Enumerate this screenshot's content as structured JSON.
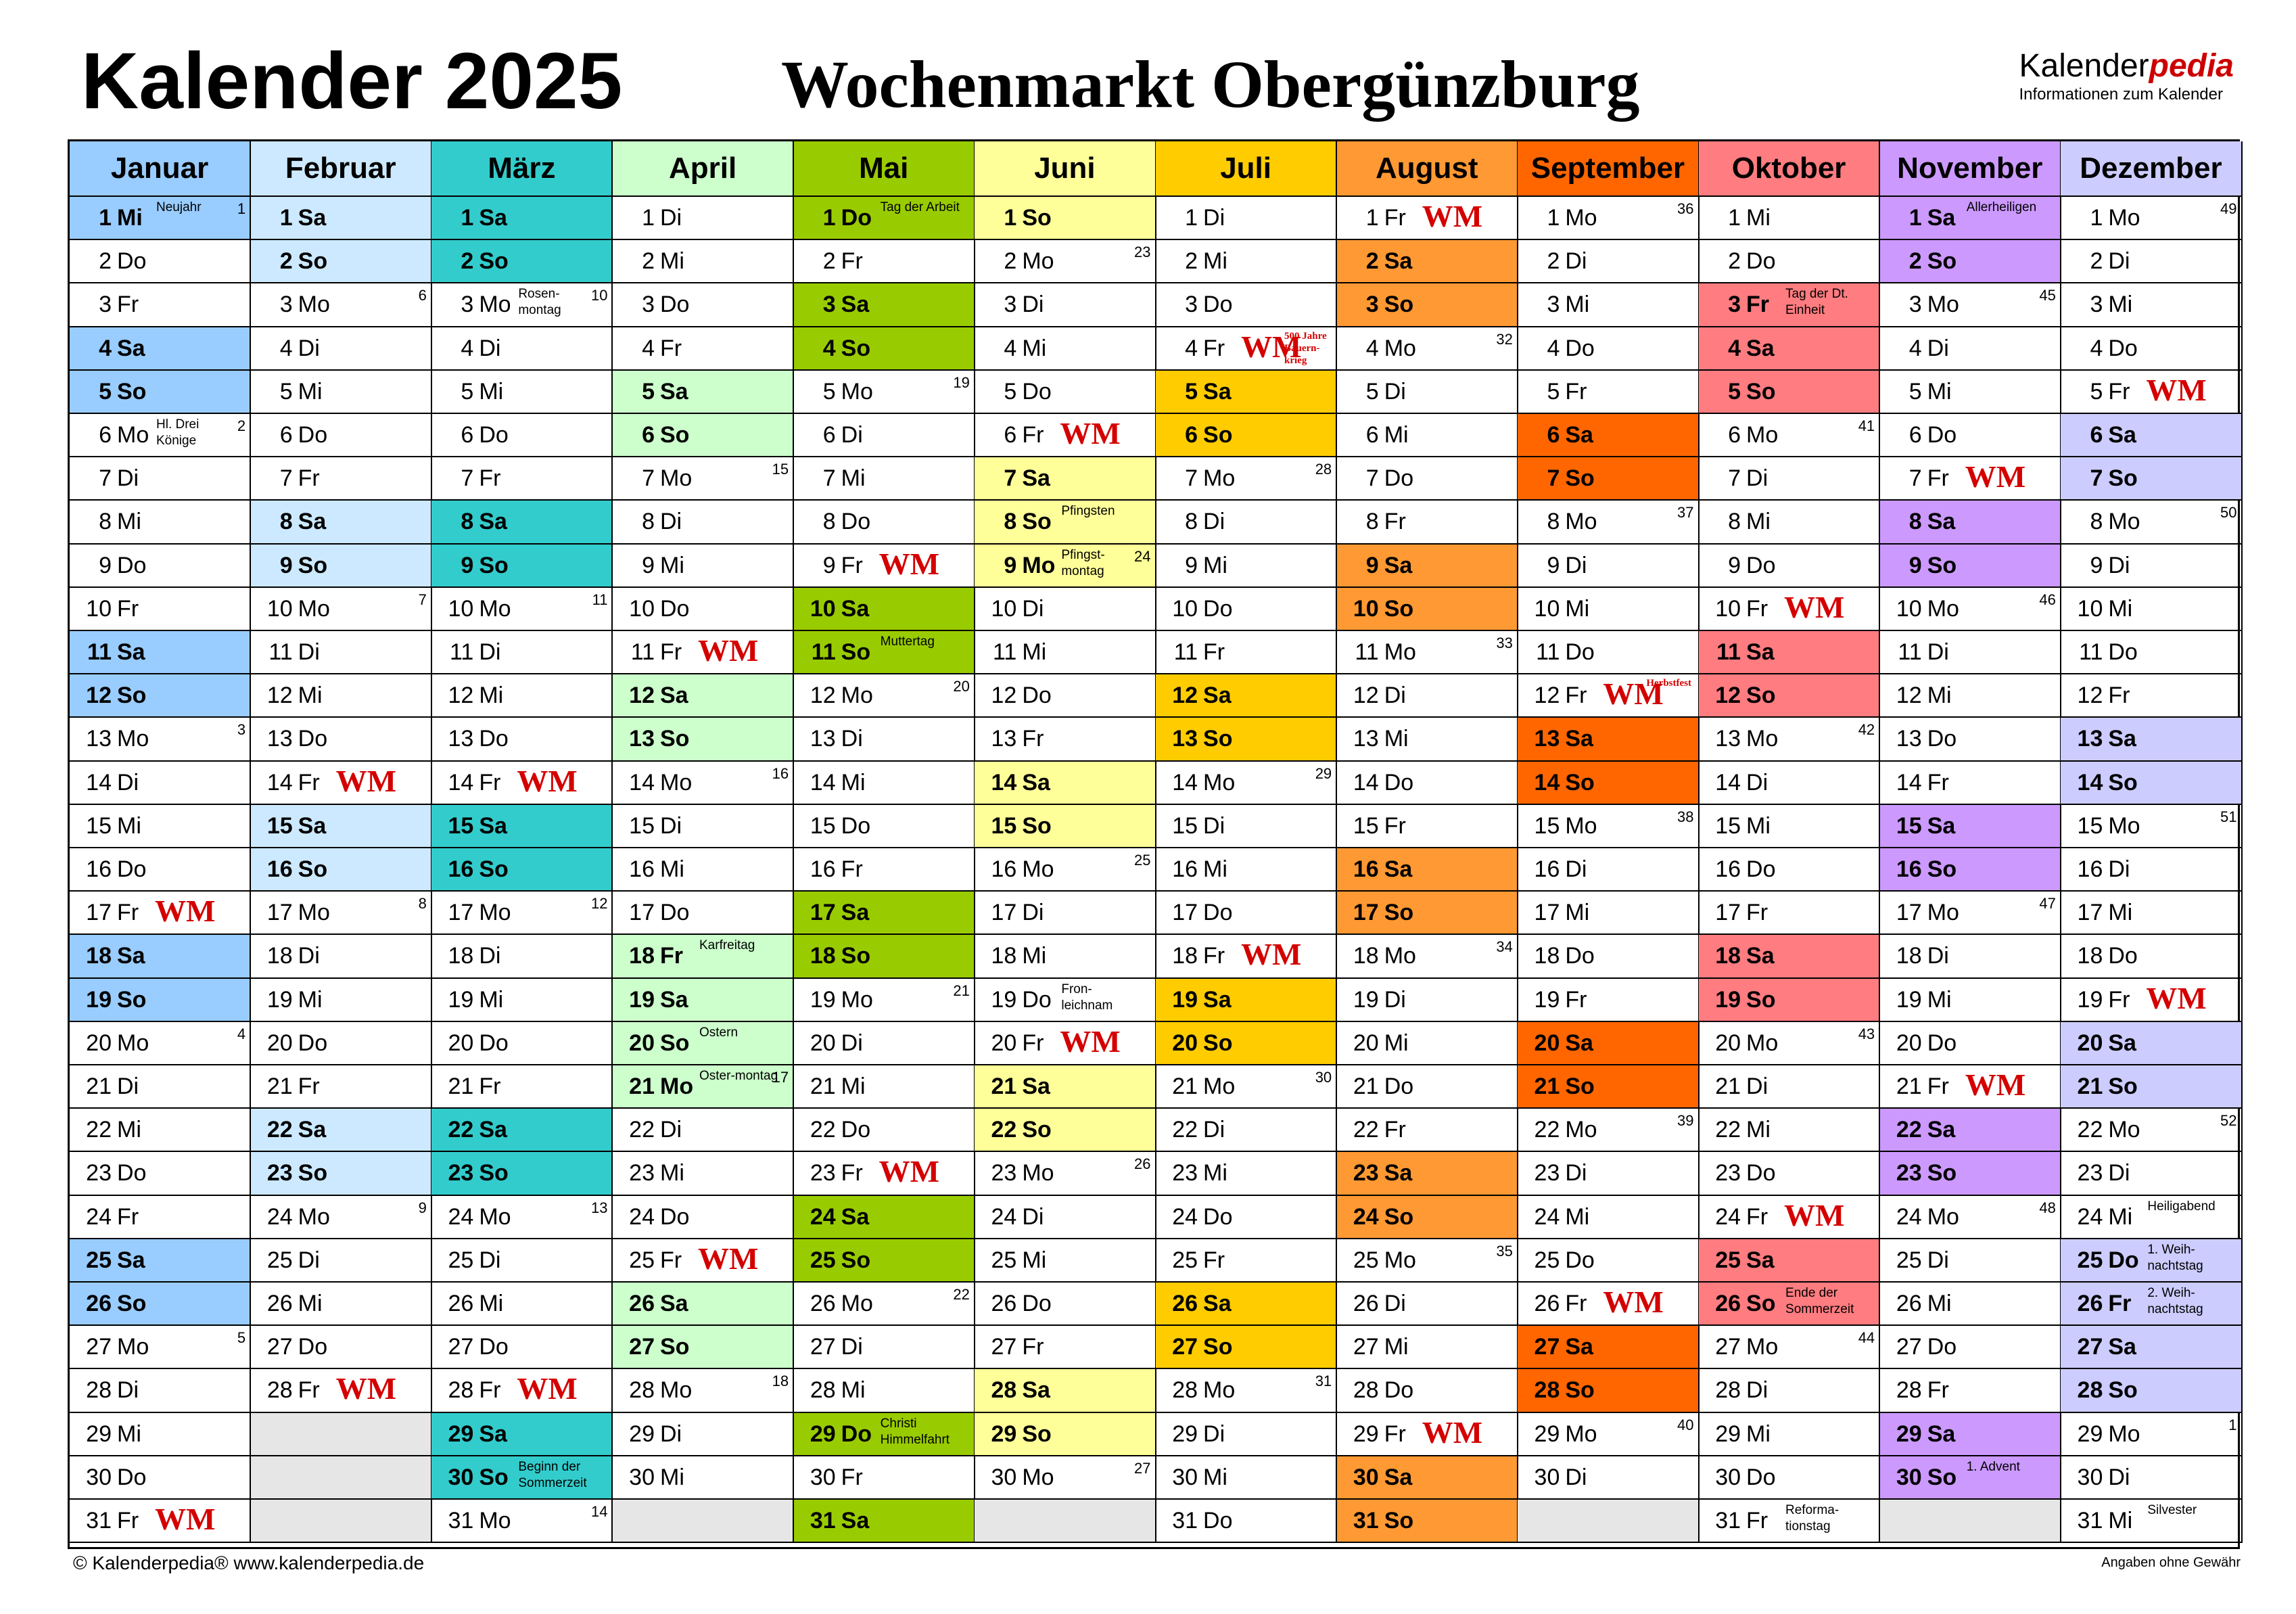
{
  "title": "Kalender 2025",
  "subtitle": "Wochenmarkt Obergünzburg",
  "brand": {
    "name_part1": "Kalender",
    "name_part2": "pedia",
    "tagline": "Informationen zum Kalender"
  },
  "footer": {
    "left": "© Kalenderpedia®   www.kalenderpedia.de",
    "right": "Angaben ohne Gewähr"
  },
  "wm_label": "WM",
  "weekday_labels": [
    "Mo",
    "Di",
    "Mi",
    "Do",
    "Fr",
    "Sa",
    "So"
  ],
  "months": [
    {
      "name": "Januar",
      "header_color": "#99ccff",
      "weekend_color": "#99ccff",
      "days": 31,
      "first_weekday": 2,
      "week_numbers": {
        "1": "1",
        "6": "2",
        "13": "3",
        "20": "4",
        "27": "5"
      },
      "holidays": {
        "1": "Neujahr",
        "6": "Hl. Drei Könige"
      },
      "market_days": [
        17,
        31
      ]
    },
    {
      "name": "Februar",
      "header_color": "#cce9ff",
      "weekend_color": "#cce9ff",
      "days": 28,
      "first_weekday": 5,
      "week_numbers": {
        "3": "6",
        "10": "7",
        "17": "8",
        "24": "9"
      },
      "holidays": {},
      "market_days": [
        14,
        28
      ]
    },
    {
      "name": "März",
      "header_color": "#33cccc",
      "weekend_color": "#33cccc",
      "days": 31,
      "first_weekday": 5,
      "week_numbers": {
        "3": "10",
        "10": "11",
        "17": "12",
        "24": "13",
        "31": "14"
      },
      "holidays": {
        "3": "Rosen-montag",
        "30": "Beginn der Sommerzeit"
      },
      "market_days": [
        14,
        28
      ]
    },
    {
      "name": "April",
      "header_color": "#ccffcc",
      "weekend_color": "#ccffcc",
      "days": 30,
      "first_weekday": 1,
      "week_numbers": {
        "14": "16",
        "21": "17",
        "28": "18",
        "7": "15"
      },
      "holidays": {
        "18": "Karfreitag",
        "20": "Ostern",
        "21": "Oster-montag"
      },
      "market_days": [
        11,
        25
      ]
    },
    {
      "name": "Mai",
      "header_color": "#99cc00",
      "weekend_color": "#99cc00",
      "days": 31,
      "first_weekday": 3,
      "week_numbers": {
        "5": "19",
        "12": "20",
        "19": "21",
        "26": "22"
      },
      "holidays": {
        "1": "Tag der Arbeit",
        "11": "Muttertag",
        "29": "Christi Himmelfahrt"
      },
      "market_days": [
        9,
        23
      ]
    },
    {
      "name": "Juni",
      "header_color": "#ffff99",
      "weekend_color": "#ffff99",
      "days": 30,
      "first_weekday": 6,
      "week_numbers": {
        "2": "23",
        "9": "24",
        "16": "25",
        "23": "26",
        "30": "27"
      },
      "holidays": {
        "8": "Pfingsten",
        "9": "Pfingst-montag",
        "19": "Fron-leichnam"
      },
      "market_days": [
        6,
        20
      ]
    },
    {
      "name": "Juli",
      "header_color": "#ffcc00",
      "weekend_color": "#ffcc00",
      "days": 31,
      "first_weekday": 1,
      "week_numbers": {
        "7": "28",
        "14": "29",
        "21": "30",
        "28": "31"
      },
      "holidays": {
        "4": "500 Jahre Bauern-krieg"
      },
      "market_days": [
        4,
        18
      ]
    },
    {
      "name": "August",
      "header_color": "#ff9933",
      "weekend_color": "#ff9933",
      "days": 31,
      "first_weekday": 4,
      "week_numbers": {
        "4": "32",
        "11": "33",
        "18": "34",
        "25": "35"
      },
      "holidays": {},
      "market_days": [
        1,
        29
      ]
    },
    {
      "name": "September",
      "header_color": "#ff6600",
      "weekend_color": "#ff6600",
      "days": 30,
      "first_weekday": 0,
      "week_numbers": {
        "1": "36",
        "8": "37",
        "15": "38",
        "22": "39",
        "29": "40"
      },
      "holidays": {
        "12": "Herbstfest"
      },
      "market_days": [
        12,
        26
      ]
    },
    {
      "name": "Oktober",
      "header_color": "#ff7c80",
      "weekend_color": "#ff7c80",
      "days": 31,
      "first_weekday": 2,
      "week_numbers": {
        "6": "41",
        "13": "42",
        "20": "43",
        "27": "44"
      },
      "holidays": {
        "3": "Tag der Dt. Einheit",
        "26": "Ende der Sommerzeit",
        "31": "Reforma-tionstag"
      },
      "market_days": [
        10,
        24
      ]
    },
    {
      "name": "November",
      "header_color": "#cc99ff",
      "weekend_color": "#cc99ff",
      "days": 30,
      "first_weekday": 5,
      "week_numbers": {
        "3": "45",
        "10": "46",
        "17": "47",
        "24": "48"
      },
      "holidays": {
        "1": "Allerheiligen",
        "30": "1. Advent"
      },
      "market_days": [
        7,
        21
      ]
    },
    {
      "name": "Dezember",
      "header_color": "#ccccff",
      "weekend_color": "#ccccff",
      "days": 31,
      "first_weekday": 0,
      "week_numbers": {
        "1": "49",
        "8": "50",
        "15": "51",
        "22": "52",
        "29": "1"
      },
      "holidays": {
        "24": "Heiligabend",
        "25": "1. Weih-nachtstag",
        "26": "2. Weih-nachtstag",
        "31": "Silvester"
      },
      "market_days": [
        5,
        19
      ]
    }
  ]
}
